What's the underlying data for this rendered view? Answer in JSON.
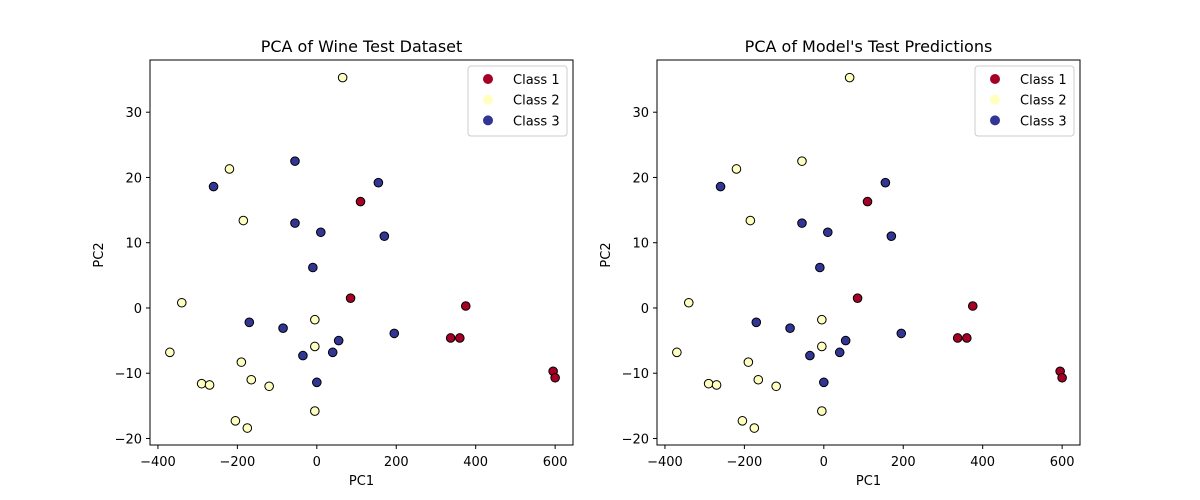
{
  "chart_data": [
    {
      "type": "scatter",
      "title": "PCA of Wine Test Dataset",
      "xlabel": "PC1",
      "ylabel": "PC2",
      "xlim": [
        -420,
        645
      ],
      "ylim": [
        -21,
        38
      ],
      "xticks": [
        -400,
        -200,
        0,
        200,
        400,
        600
      ],
      "yticks": [
        -20,
        -10,
        0,
        10,
        20,
        30
      ],
      "grid": false,
      "legend_position": "top-right",
      "series": [
        {
          "name": "Class 1",
          "color": "#a50026",
          "points": [
            [
              110,
              16.3
            ],
            [
              85,
              1.5
            ],
            [
              375,
              0.3
            ],
            [
              337,
              -4.6
            ],
            [
              360,
              -4.6
            ],
            [
              595,
              -9.7
            ],
            [
              600,
              -10.7
            ]
          ]
        },
        {
          "name": "Class 2",
          "color": "#ffffbf",
          "points": [
            [
              65,
              35.3
            ],
            [
              -220,
              21.3
            ],
            [
              -185,
              13.4
            ],
            [
              -340,
              0.8
            ],
            [
              -370,
              -6.8
            ],
            [
              -190,
              -8.3
            ],
            [
              -290,
              -11.6
            ],
            [
              -270,
              -11.8
            ],
            [
              -165,
              -11.0
            ],
            [
              -120,
              -12.0
            ],
            [
              -5,
              -1.8
            ],
            [
              -5,
              -5.9
            ],
            [
              -205,
              -17.3
            ],
            [
              -175,
              -18.4
            ],
            [
              -5,
              -15.8
            ]
          ]
        },
        {
          "name": "Class 3",
          "color": "#313695",
          "points": [
            [
              -55,
              22.5
            ],
            [
              -260,
              18.6
            ],
            [
              155,
              19.2
            ],
            [
              -55,
              13.0
            ],
            [
              10,
              11.6
            ],
            [
              170,
              11.0
            ],
            [
              -10,
              6.2
            ],
            [
              -170,
              -2.2
            ],
            [
              -85,
              -3.1
            ],
            [
              -35,
              -7.3
            ],
            [
              40,
              -6.8
            ],
            [
              55,
              -5.0
            ],
            [
              195,
              -3.9
            ],
            [
              0,
              -11.4
            ]
          ]
        }
      ]
    },
    {
      "type": "scatter",
      "title": "PCA of Model's Test Predictions",
      "xlabel": "PC1",
      "ylabel": "PC2",
      "xlim": [
        -420,
        645
      ],
      "ylim": [
        -21,
        38
      ],
      "xticks": [
        -400,
        -200,
        0,
        200,
        400,
        600
      ],
      "yticks": [
        -20,
        -10,
        0,
        10,
        20,
        30
      ],
      "grid": false,
      "legend_position": "top-right",
      "series": [
        {
          "name": "Class 1",
          "color": "#a50026",
          "points": [
            [
              110,
              16.3
            ],
            [
              85,
              1.5
            ],
            [
              375,
              0.3
            ],
            [
              337,
              -4.6
            ],
            [
              360,
              -4.6
            ],
            [
              595,
              -9.7
            ],
            [
              600,
              -10.7
            ]
          ]
        },
        {
          "name": "Class 2",
          "color": "#ffffbf",
          "points": [
            [
              65,
              35.3
            ],
            [
              -55,
              22.5
            ],
            [
              -220,
              21.3
            ],
            [
              -185,
              13.4
            ],
            [
              -340,
              0.8
            ],
            [
              -370,
              -6.8
            ],
            [
              -190,
              -8.3
            ],
            [
              -290,
              -11.6
            ],
            [
              -270,
              -11.8
            ],
            [
              -165,
              -11.0
            ],
            [
              -120,
              -12.0
            ],
            [
              -5,
              -1.8
            ],
            [
              -5,
              -5.9
            ],
            [
              -205,
              -17.3
            ],
            [
              -175,
              -18.4
            ],
            [
              -5,
              -15.8
            ]
          ]
        },
        {
          "name": "Class 3",
          "color": "#313695",
          "points": [
            [
              -260,
              18.6
            ],
            [
              155,
              19.2
            ],
            [
              -55,
              13.0
            ],
            [
              10,
              11.6
            ],
            [
              170,
              11.0
            ],
            [
              -10,
              6.2
            ],
            [
              -170,
              -2.2
            ],
            [
              -85,
              -3.1
            ],
            [
              -35,
              -7.3
            ],
            [
              40,
              -6.8
            ],
            [
              55,
              -5.0
            ],
            [
              195,
              -3.9
            ],
            [
              0,
              -11.4
            ]
          ]
        }
      ]
    }
  ]
}
